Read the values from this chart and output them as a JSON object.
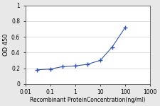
{
  "x": [
    0.03,
    0.1,
    0.3,
    1,
    3,
    10,
    30,
    100
  ],
  "y": [
    0.18,
    0.19,
    0.22,
    0.23,
    0.25,
    0.3,
    0.47,
    0.72
  ],
  "line_color": "#3355aa",
  "marker": "+",
  "marker_color": "#3355aa",
  "marker_size": 4,
  "marker_linewidth": 1.0,
  "line_width": 0.8,
  "xlabel": "Recombinant ProteinConcentration(ng/ml)",
  "ylabel": "OD 450",
  "xlim": [
    0.01,
    1000
  ],
  "ylim": [
    0,
    1
  ],
  "yticks": [
    0,
    0.2,
    0.4,
    0.6,
    0.8,
    1
  ],
  "ytick_labels": [
    "0",
    "0.2",
    "0.4",
    "0.6",
    "0.8",
    "1"
  ],
  "xticks": [
    0.01,
    0.1,
    1,
    10,
    100,
    1000
  ],
  "xtick_labels": [
    "0.01",
    "0.1",
    "1",
    "10",
    "100",
    "1000"
  ],
  "grid_color": "#d0d0d0",
  "background_color": "#e8e8e8",
  "plot_bg_color": "#ffffff",
  "xlabel_fontsize": 5.5,
  "ylabel_fontsize": 6,
  "tick_fontsize": 5.5
}
